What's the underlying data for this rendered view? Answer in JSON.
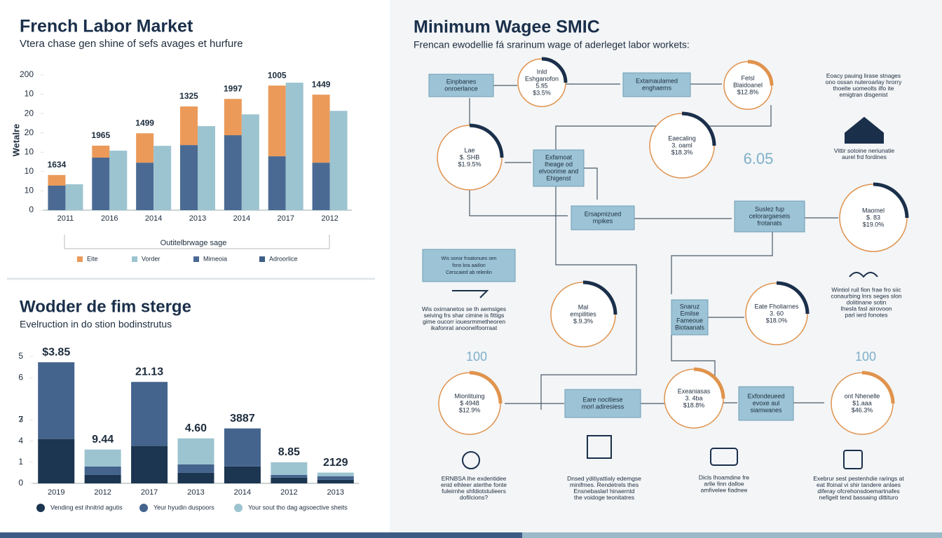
{
  "chart_data": [
    {
      "type": "bar",
      "title": "French Labor Market",
      "subtitle": "Vtera chase gen shine of sefs avages et hurfure",
      "y_label": "Wetalre",
      "x_label": "Outitelbrwage sage",
      "categories": [
        "2011",
        "2016",
        "2014",
        "2013",
        "2014",
        "2017",
        "2012"
      ],
      "series": [
        {
          "name": "Mimeoia",
          "color": "#4a6a93",
          "stack_group": 0,
          "values": [
            1.27,
            2.72,
            2.46,
            3.37,
            3.88,
            2.79,
            2.46
          ]
        },
        {
          "name": "Eite",
          "color": "#eb9a5a",
          "stack_group": 0,
          "values": [
            0.55,
            0.62,
            1.52,
            2.0,
            1.88,
            3.66,
            3.52
          ]
        },
        {
          "name": "Vorder",
          "color": "#9cc4d0",
          "stack_group": 1,
          "values": [
            1.34,
            3.08,
            3.33,
            4.35,
            4.96,
            6.6,
            5.14
          ]
        }
      ],
      "extra_legend_entries": [
        {
          "name": "Adroorlice",
          "color": "#3e5f87"
        }
      ],
      "annotations": [
        "1634",
        "1965",
        "1499",
        "1325",
        "1997",
        "1005",
        "1449"
      ],
      "ylim": [
        0,
        7
      ],
      "yticks": [
        0,
        {
          "value": 1,
          "label": "10"
        },
        {
          "value": 2,
          "label": "10"
        },
        {
          "value": 3,
          "label": "10"
        },
        {
          "value": 4,
          "label": "20"
        },
        {
          "value": 5,
          "label": "20"
        },
        {
          "value": 6,
          "label": "10"
        },
        {
          "value": 7,
          "label": "200"
        }
      ]
    },
    {
      "type": "bar",
      "title": "Wodder de fim sterge",
      "subtitle": "Evelruction in do stion bodinstrutus",
      "categories": [
        "2019",
        "2012",
        "2017",
        "2013",
        "2014",
        "2012",
        "2013"
      ],
      "series": [
        {
          "name": "Vending est ihnitrid agutis",
          "color": "#1c3550",
          "stack_group": 0,
          "values": [
            2.1,
            0.4,
            1.77,
            0.5,
            0.8,
            0.27,
            0.17
          ]
        },
        {
          "name": "Yeur hyudin duspoors",
          "color": "#44648e",
          "stack_group": 0,
          "values": [
            3.63,
            0.4,
            3.03,
            0.4,
            1.8,
            0.13,
            0.17
          ]
        },
        {
          "name": "Your sout tho dag agsoective sheits",
          "color": "#9cc4d0",
          "stack_group": 0,
          "values": [
            0,
            0.8,
            0,
            1.23,
            0,
            0.6,
            0.17
          ]
        }
      ],
      "annotations": [
        "$3.85",
        "9.44",
        "21.13",
        "4.60",
        "3887",
        "8.85",
        "2129"
      ],
      "ylim": [
        0,
        6
      ],
      "yticks": [
        0,
        1,
        {
          "value": 2,
          "label": "4"
        },
        {
          "value": 3,
          "label": "7"
        },
        3.0,
        {
          "value": 5,
          "label": "6"
        },
        {
          "value": 6,
          "label": "5"
        }
      ]
    }
  ],
  "diagram": {
    "title": "Minimum Wagee SMIC",
    "subtitle": "Frencan ewodellie fá srarinum wage of aderleget labor workets:",
    "boxes": [
      {
        "lines": [
          "Einpbanes",
          "onroerlance"
        ]
      },
      {
        "lines": [
          "Extamaulamed",
          "enghaems"
        ]
      },
      {
        "lines": [
          "Exfamoat",
          "Iheage od",
          "elvoorime and",
          "Ehigenst"
        ]
      },
      {
        "lines": [
          "Ersapmizued",
          "mpikes"
        ]
      },
      {
        "lines": [
          "Suslez fup",
          "celorargaeseis",
          "frotanats"
        ]
      },
      {
        "lines": [
          "Snaruz",
          "Emilse",
          "Fameoue",
          "Biotaanals"
        ]
      },
      {
        "lines": [
          "Eare nocitiese",
          "morl adiresiess"
        ]
      },
      {
        "lines": [
          "Exfondeueed",
          "evoxe aul",
          "siamwanes"
        ]
      },
      {
        "lines": [
          "Wis sonsr froatonues sen",
          "fons bra aaiilon",
          "Cerscaied ab relenlin"
        ]
      }
    ],
    "circles": [
      {
        "lines": [
          "Inld",
          "Eshganofon",
          "5.fi5",
          "$3.5%"
        ]
      },
      {
        "lines": [
          "Felsl",
          "Blaidoanel",
          "$12.8%"
        ]
      },
      {
        "lines": [
          "Lae",
          "$. SHB",
          "$1.9.5%"
        ]
      },
      {
        "lines": [
          "Eaecaling",
          "3. oaml",
          "$18.3%"
        ]
      },
      {
        "lines": [
          "Maomel",
          "$. 83",
          "$19.0%"
        ]
      },
      {
        "lines": [
          "Mal",
          "empilities",
          "$.9.3%"
        ]
      },
      {
        "lines": [
          "Eate Fholiarnes",
          "3. 60",
          "$18.0%"
        ]
      },
      {
        "lines": [
          "Mionlituing",
          "$ 4948",
          "$12.9%"
        ]
      },
      {
        "lines": [
          "Exeaniasas",
          "3. 4ba",
          "$18.8%"
        ]
      },
      {
        "lines": [
          "ont Nhenelle",
          "$1.aaa",
          "$46.3%"
        ]
      }
    ],
    "big_numbers": [
      "6.05",
      "100",
      "100"
    ],
    "notes": [
      {
        "lines": [
          "Eoacy pauing lirase stnages",
          "ono ossan nuteroarlay hrorry",
          "thoelte uomeolts ilfo ite",
          "emigtran disgenist"
        ]
      },
      {
        "lines": [
          "Vittir sotoine neriunatie",
          "aurel frd fordines"
        ]
      },
      {
        "lines": [
          "Wis oxirnanetos se th aemsiges",
          "seiving frs shar cimine is fittigs",
          "gime oucorr iouesrmmetheoren",
          "ikafonrat anoonelfoorraat"
        ]
      },
      {
        "lines": [
          "Wintiol ruil fion frae fro siic",
          "conaurbing lnrs seges slon",
          "dolitinane sotin",
          "Ihesla fasl airovoon",
          "parl ierd fonotes"
        ]
      },
      {
        "lines": [
          "ERNBSA Ihe exdentidee",
          "enid elhleer aterthe fonte",
          "fuleirnhe shfdiotstulieers",
          "dofilcions?"
        ]
      },
      {
        "lines": [
          "Dnsed yditiyattialy edemgse",
          "minifmes. Rendetrels thes",
          "Ensnebaslarl hinaerntd",
          "the voidoge teonitatres"
        ]
      },
      {
        "lines": [
          "Dicls lhoamdine fre",
          "arlle finn dalloe",
          "amfivelee fiadnee"
        ]
      },
      {
        "lines": [
          "Exebrur sest pestenhdie rarings at",
          "eat Ifoinal vi shir tandere anlaes",
          "diferay ofcrehonsdoemartnafes",
          "nefigelt tend bassaing dittituro"
        ]
      }
    ]
  }
}
